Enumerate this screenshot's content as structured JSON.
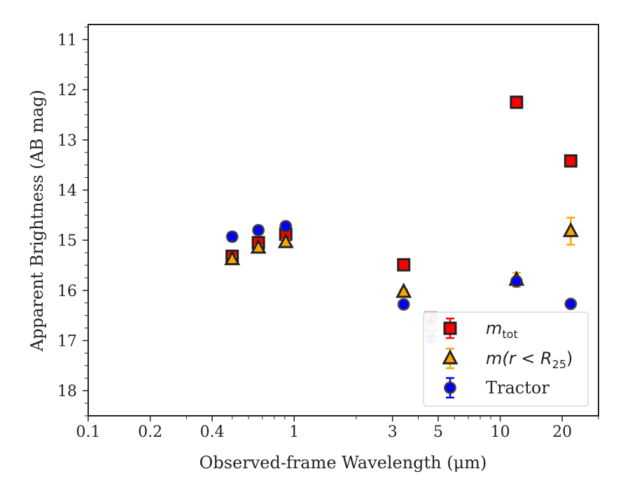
{
  "chart_data": {
    "type": "scatter",
    "xlabel": "Observed-frame Wavelength (μm)",
    "ylabel": "Apparent Brightness (AB mag)",
    "x_scale": "log",
    "xlim": [
      0.1,
      30
    ],
    "ylim": [
      18.5,
      10.7
    ],
    "y_inverted": true,
    "x_ticks": [
      0.1,
      0.2,
      0.4,
      1,
      3,
      5,
      10,
      20
    ],
    "x_tick_labels": [
      "0.1",
      "0.2",
      "0.4",
      "1",
      "3",
      "5",
      "10",
      "20"
    ],
    "y_ticks": [
      11,
      12,
      13,
      14,
      15,
      16,
      17,
      18
    ],
    "y_tick_labels": [
      "11",
      "12",
      "13",
      "14",
      "15",
      "16",
      "17",
      "18"
    ],
    "legend_position": "lower-right",
    "series": [
      {
        "name": "m_tot",
        "label_main": "m",
        "label_sub": "tot",
        "marker": "square",
        "color": "#ff0000",
        "errcolor": "#ff0000",
        "x": [
          0.5,
          0.67,
          0.91,
          3.4,
          4.6,
          12.0,
          22.0
        ],
        "y": [
          15.32,
          15.05,
          14.88,
          15.49,
          16.54,
          12.25,
          13.42
        ],
        "yerr": [
          0.05,
          0.05,
          0.05,
          0.05,
          0.07,
          0.05,
          0.05
        ],
        "faded": [
          false,
          false,
          false,
          false,
          true,
          false,
          false
        ]
      },
      {
        "name": "m(r < R25)",
        "label_main": "m(r < R",
        "label_sub": "25",
        "label_end": ")",
        "marker": "triangle",
        "color": "#ffa500",
        "errcolor": "#ffa500",
        "x": [
          0.5,
          0.67,
          0.91,
          3.4,
          4.6,
          12.0,
          22.0
        ],
        "y": [
          15.38,
          15.15,
          15.04,
          16.03,
          16.72,
          15.79,
          14.82
        ],
        "yerr": [
          0.05,
          0.05,
          0.05,
          0.05,
          0.08,
          0.14,
          0.27
        ],
        "faded": [
          false,
          false,
          false,
          false,
          true,
          false,
          false
        ]
      },
      {
        "name": "Tractor",
        "label_main": "Tractor",
        "marker": "circle",
        "color": "#0000ff",
        "errcolor": "#0000ff",
        "x": [
          0.5,
          0.67,
          0.91,
          3.4,
          4.6,
          12.0,
          22.0
        ],
        "y": [
          14.93,
          14.8,
          14.72,
          16.28,
          16.96,
          15.82,
          16.27
        ],
        "yerr": [
          0.08,
          0.07,
          0.06,
          0.06,
          0.06,
          0.05,
          0.05
        ],
        "faded": [
          false,
          false,
          false,
          false,
          true,
          false,
          false
        ]
      }
    ]
  }
}
